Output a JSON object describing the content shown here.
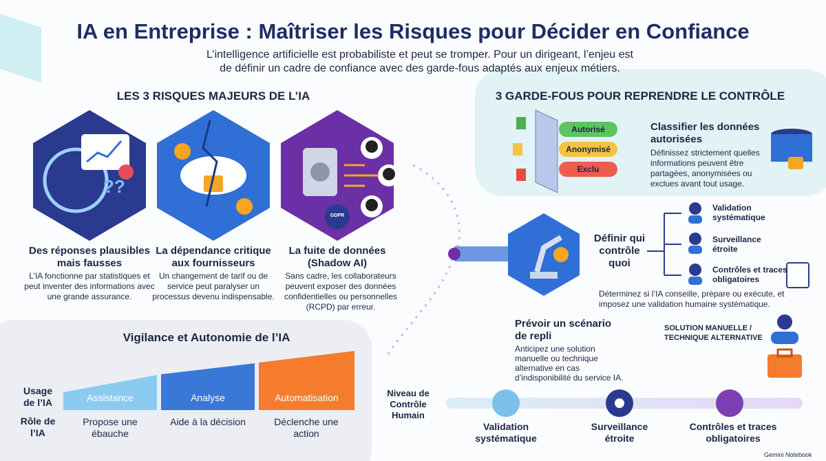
{
  "header": {
    "title": "IA en Entreprise : Maîtriser les Risques pour Décider en Confiance",
    "subtitle": "L’intelligence artificielle est probabiliste et peut se tromper. Pour un dirigeant, l’enjeu est de définir un cadre de confiance avec des garde-fous adaptés aux enjeux métiers."
  },
  "risks": {
    "heading": "LES 3 RISQUES MAJEURS DE L’IA",
    "items": [
      {
        "title": "Des réponses plausibles mais fausses",
        "text": "L’IA fonctionne par statistiques et peut inventer des informations avec une grande assurance."
      },
      {
        "title": "La dépendance critique aux fournisseurs",
        "text": "Un changement de tarif ou de service peut paralyser un processus devenu indispensable."
      },
      {
        "title": "La fuite de données (Shadow AI)",
        "text": "Sans cadre, les collaborateurs peuvent exposer des données confidentielles ou personnelles (RCPD) par erreur.",
        "badge": "GDPR"
      }
    ]
  },
  "guards": {
    "heading": "3 GARDE-FOUS POUR REPRENDRE LE CONTRÔLE",
    "classify": {
      "labels": [
        "Autorisé",
        "Anonymisé",
        "Exclu"
      ],
      "title": "Classifier les données autorisées",
      "text": "Définissez strictement quelles informations peuvent être partagées, anonymisées ou exclues avant tout usage."
    },
    "control": {
      "title": "Définir qui contrôle quoi",
      "items": [
        "Validation systématique",
        "Surveillance étroite",
        "Contrôles et traces obligatoires"
      ],
      "text": "Déterminez si l’IA conseille, prépare ou exécute, et imposez une validation humaine systématique."
    },
    "fallback": {
      "title": "Prévoir un scénario de repli",
      "text": "Anticipez une solution manuelle ou technique alternative en cas d’indisponibilité du service IA.",
      "label": "SOLUTION MANUELLE / TECHNIQUE ALTERNATIVE"
    }
  },
  "vigilance": {
    "title": "Vigilance et Autonomie de l’IA",
    "row_labels": [
      "Usage de l’IA",
      "Rôle de l’IA"
    ],
    "levels": [
      {
        "usage": "Assistance",
        "role": "Propose une ébauche"
      },
      {
        "usage": "Analyse",
        "role": "Aide à la décision"
      },
      {
        "usage": "Automatisation",
        "role": "Déclenche une action"
      }
    ]
  },
  "control_scale": {
    "label": "Niveau de Contrôle Humain",
    "items": [
      "Validation systématique",
      "Surveillance étroite",
      "Contrôles et traces obligatoires"
    ]
  },
  "footer": {
    "brand": "Gemini Notebook"
  }
}
